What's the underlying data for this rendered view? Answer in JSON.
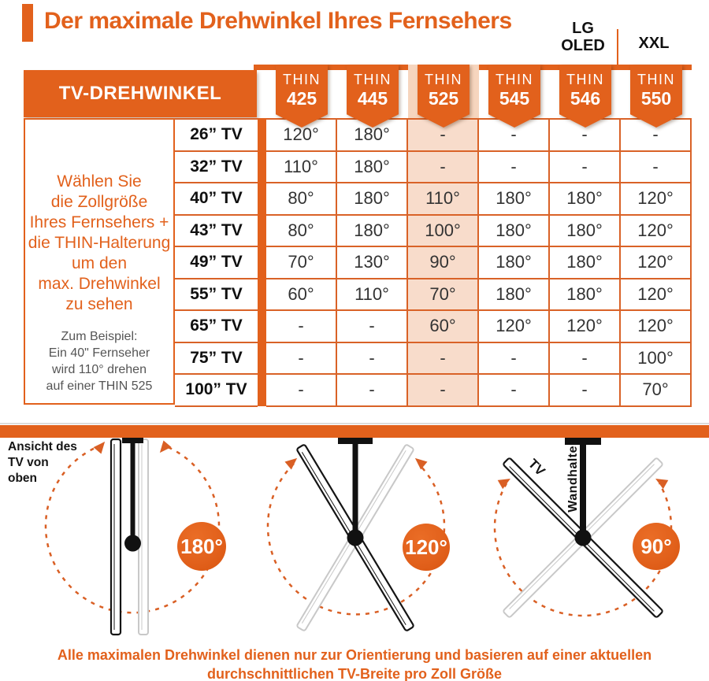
{
  "title": "Der maximale Drehwinkel Ihres Fernsehers",
  "annotations": {
    "lg_oled": "LG\nOLED",
    "xxl": "XXL"
  },
  "table": {
    "corner_label": "TV-DREHWINKEL",
    "columns": [
      {
        "line1": "THIN",
        "line2": "425",
        "highlight": false
      },
      {
        "line1": "THIN",
        "line2": "445",
        "highlight": false
      },
      {
        "line1": "THIN",
        "line2": "525",
        "highlight": true
      },
      {
        "line1": "THIN",
        "line2": "545",
        "highlight": false
      },
      {
        "line1": "THIN",
        "line2": "546",
        "highlight": false
      },
      {
        "line1": "THIN",
        "line2": "550",
        "highlight": false
      }
    ],
    "rows": [
      {
        "label": "26” TV",
        "values": [
          "120°",
          "180°",
          "-",
          "-",
          "-",
          "-"
        ]
      },
      {
        "label": "32” TV",
        "values": [
          "110°",
          "180°",
          "-",
          "-",
          "-",
          "-"
        ]
      },
      {
        "label": "40” TV",
        "values": [
          "80°",
          "180°",
          "110°",
          "180°",
          "180°",
          "120°"
        ]
      },
      {
        "label": "43” TV",
        "values": [
          "80°",
          "180°",
          "100°",
          "180°",
          "180°",
          "120°"
        ]
      },
      {
        "label": "49” TV",
        "values": [
          "70°",
          "130°",
          "90°",
          "180°",
          "180°",
          "120°"
        ]
      },
      {
        "label": "55” TV",
        "values": [
          "60°",
          "110°",
          "70°",
          "180°",
          "180°",
          "120°"
        ]
      },
      {
        "label": "65” TV",
        "values": [
          "-",
          "-",
          "60°",
          "120°",
          "120°",
          "120°"
        ]
      },
      {
        "label": "75” TV",
        "values": [
          "-",
          "-",
          "-",
          "-",
          "-",
          "100°"
        ]
      },
      {
        "label": "100” TV",
        "values": [
          "-",
          "-",
          "-",
          "-",
          "-",
          "70°"
        ]
      }
    ],
    "sidebar": {
      "instruction": "Wählen Sie\ndie Zollgröße\nIhres Fernsehers +\ndie THIN-Halterung\num den\nmax. Drehwinkel\nzu sehen",
      "example": "Zum Beispiel:\nEin 40\" Fernseher\nwird 110° drehen\nauf einer THIN 525"
    }
  },
  "diagrams": {
    "view_label": "Ansicht des\nTV von\noben",
    "items": [
      {
        "angle": "180°"
      },
      {
        "angle": "120°"
      },
      {
        "angle": "90°",
        "tv_label": "TV",
        "mount_label": "Wandhalter"
      }
    ]
  },
  "footer": "Alle maximalen Drehwinkel dienen nur zur Orientierung und basieren auf einer aktuellen\ndurchschnittlichen TV-Breite pro Zoll Größe",
  "colors": {
    "orange": "#E2611C",
    "border": "#D96227",
    "highlight_header": "#F6D5BE",
    "highlight_cell": "#F8DCCB",
    "arc": "#D95F24",
    "ghost": "#C8C8C8",
    "text_dark": "#141414",
    "gray_text": "#555555"
  }
}
